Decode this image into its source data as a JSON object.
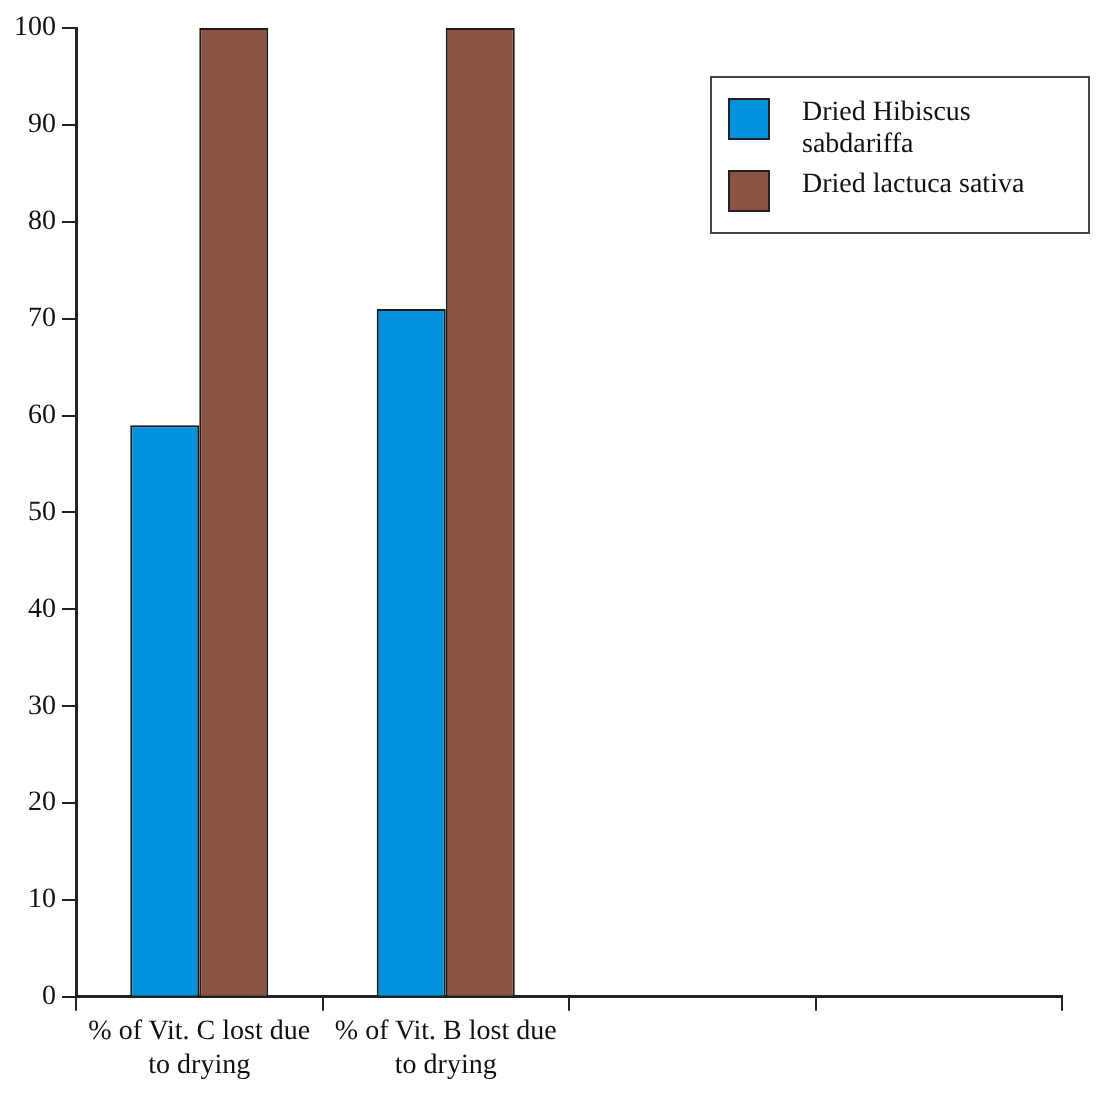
{
  "chart_data": {
    "type": "bar",
    "categories": [
      "% of Vit. C lost due to drying",
      "% of Vit. B lost due to drying",
      null,
      null
    ],
    "series": [
      {
        "name": "Dried Hibiscus sabdariffa",
        "color": "#0091dc",
        "values": [
          59,
          71,
          null,
          null
        ]
      },
      {
        "name": "Dried lactuca sativa",
        "color": "#8b5342",
        "values": [
          100,
          100,
          null,
          null
        ]
      }
    ],
    "ylim": [
      0,
      100
    ],
    "yticks": [
      0,
      10,
      20,
      30,
      40,
      50,
      60,
      70,
      80,
      90,
      100
    ],
    "grid": false,
    "legend": "top right"
  }
}
